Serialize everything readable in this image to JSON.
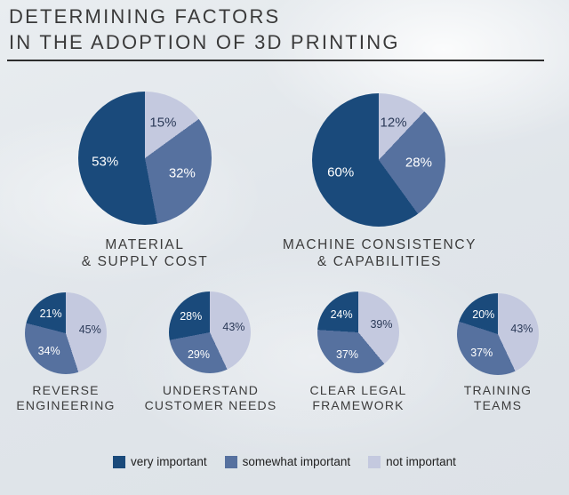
{
  "title": {
    "line1": "DETERMINING FACTORS",
    "line2": "IN THE ADOPTION OF 3D PRINTING"
  },
  "legend": [
    {
      "label": "very important",
      "color": "#1a4a7b",
      "value_label_color": "#ffffff"
    },
    {
      "label": "somewhat important",
      "color": "#56719f",
      "value_label_color": "#ffffff"
    },
    {
      "label": "not important",
      "color": "#c4c9df",
      "value_label_color": "#2b3a58"
    }
  ],
  "chart_data": [
    {
      "type": "pie",
      "title": "MATERIAL & SUPPLY COST",
      "caption_lines": [
        "MATERIAL",
        "& SUPPLY COST"
      ],
      "start_angle_deg": 0,
      "direction": "clockwise",
      "slices": [
        {
          "category": "not important",
          "value": 15
        },
        {
          "category": "somewhat important",
          "value": 32
        },
        {
          "category": "very important",
          "value": 53
        }
      ]
    },
    {
      "type": "pie",
      "title": "MACHINE CONSISTENCY & CAPABILITIES",
      "caption_lines": [
        "MACHINE CONSISTENCY",
        "& CAPABILITIES"
      ],
      "start_angle_deg": 0,
      "direction": "clockwise",
      "slices": [
        {
          "category": "not important",
          "value": 12
        },
        {
          "category": "somewhat important",
          "value": 28
        },
        {
          "category": "very important",
          "value": 60
        }
      ]
    },
    {
      "type": "pie",
      "title": "REVERSE ENGINEERING",
      "caption_lines": [
        "REVERSE",
        "ENGINEERING"
      ],
      "start_angle_deg": 0,
      "direction": "clockwise",
      "slices": [
        {
          "category": "not important",
          "value": 45
        },
        {
          "category": "somewhat important",
          "value": 34
        },
        {
          "category": "very important",
          "value": 21
        }
      ]
    },
    {
      "type": "pie",
      "title": "UNDERSTAND CUSTOMER NEEDS",
      "caption_lines": [
        "UNDERSTAND",
        "CUSTOMER NEEDS"
      ],
      "start_angle_deg": 0,
      "direction": "clockwise",
      "slices": [
        {
          "category": "not important",
          "value": 43
        },
        {
          "category": "somewhat important",
          "value": 29
        },
        {
          "category": "very important",
          "value": 28
        }
      ]
    },
    {
      "type": "pie",
      "title": "CLEAR LEGAL FRAMEWORK",
      "caption_lines": [
        "CLEAR LEGAL",
        "FRAMEWORK"
      ],
      "start_angle_deg": 0,
      "direction": "clockwise",
      "slices": [
        {
          "category": "not important",
          "value": 39
        },
        {
          "category": "somewhat important",
          "value": 37
        },
        {
          "category": "very important",
          "value": 24
        }
      ]
    },
    {
      "type": "pie",
      "title": "TRAINING TEAMS",
      "caption_lines": [
        "TRAINING",
        "TEAMS"
      ],
      "start_angle_deg": 0,
      "direction": "clockwise",
      "slices": [
        {
          "category": "not important",
          "value": 43
        },
        {
          "category": "somewhat important",
          "value": 37
        },
        {
          "category": "very important",
          "value": 20
        }
      ]
    }
  ]
}
